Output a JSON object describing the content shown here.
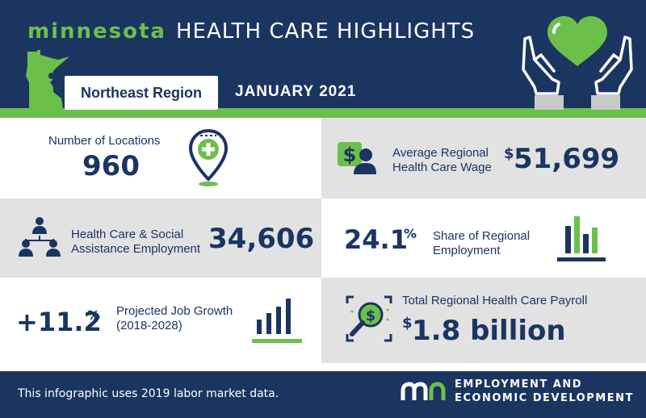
{
  "header": {
    "brand": "minnesota",
    "title": "HEALTH CARE HIGHLIGHTS",
    "region": "Northeast Region",
    "date": "JANUARY 2021"
  },
  "stats": {
    "locations": {
      "label": "Number of Locations",
      "value": "960"
    },
    "wage": {
      "label_line1": "Average Regional",
      "label_line2": "Health Care Wage",
      "currency": "$",
      "value": "51,699"
    },
    "employment": {
      "label_line1": "Health Care & Social",
      "label_line2": "Assistance Employment",
      "value": "34,606"
    },
    "share": {
      "value": "24.1",
      "unit": "%",
      "label_line1": "Share of Regional",
      "label_line2": "Employment"
    },
    "growth": {
      "value": "+11.2",
      "unit": "%",
      "label_line1": "Projected Job Growth",
      "label_line2": "(2018-2028)"
    },
    "payroll": {
      "label": "Total Regional Health Care Payroll",
      "currency": "$",
      "value": "1.8 billion"
    }
  },
  "footer": {
    "note": "This infographic uses 2019 labor market data.",
    "org_line1": "EMPLOYMENT AND",
    "org_line2": "ECONOMIC DEVELOPMENT"
  },
  "colors": {
    "navy": "#1b3561",
    "green": "#6bc04b",
    "gray": "#e2e2e3"
  },
  "icons": [
    "minnesota-map-icon",
    "hands-heart-icon",
    "location-pin-icon",
    "wage-person-icon",
    "people-group-icon",
    "bar-chart-icon",
    "growth-bars-icon",
    "payroll-search-icon",
    "deed-logo-icon"
  ]
}
